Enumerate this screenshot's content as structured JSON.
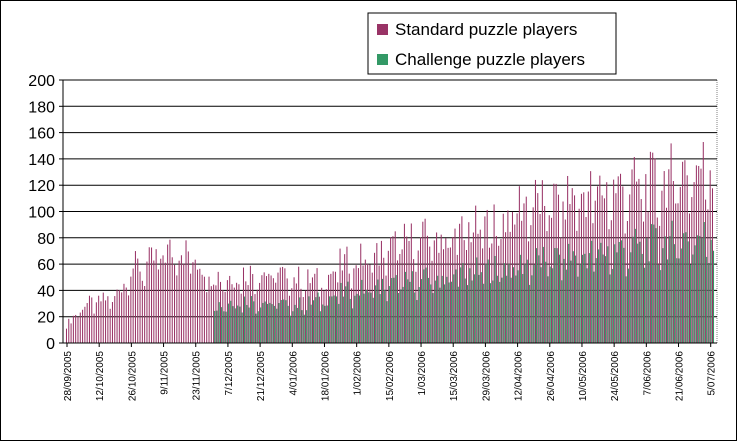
{
  "chart_data": {
    "type": "bar",
    "title": "",
    "xlabel": "",
    "ylabel": "",
    "ylim": [
      0,
      200
    ],
    "yticks": [
      "0",
      "20",
      "40",
      "60",
      "80",
      "100",
      "120",
      "140",
      "160",
      "180",
      "200"
    ],
    "x_tick_labels": [
      "28/09/2005",
      "12/10/2005",
      "26/10/2005",
      "9/11/2005",
      "23/11/2005",
      "7/12/2005",
      "21/12/2005",
      "4/01/2006",
      "18/01/2006",
      "1/02/2006",
      "15/02/2006",
      "1/03/2006",
      "15/03/2006",
      "29/03/2006",
      "12/04/2006",
      "26/04/2006",
      "10/05/2006",
      "24/05/2006",
      "7/06/2006",
      "21/06/2006",
      "5/07/2006"
    ],
    "grid": "horizontal",
    "legend_position": "top-right",
    "series": [
      {
        "name": "Standard puzzle players",
        "color": "#993366",
        "weekly_values": [
          14,
          30,
          33,
          36,
          60,
          62,
          70,
          76,
          66,
          55,
          52,
          55,
          56,
          55,
          52,
          50,
          50,
          62,
          66,
          68,
          74,
          80,
          82,
          85,
          83,
          90,
          92,
          95,
          110,
          112,
          110,
          114,
          118,
          120,
          122,
          124,
          125,
          128,
          135,
          138,
          142,
          146,
          150,
          170
        ]
      },
      {
        "name": "Challenge puzzle players",
        "color": "#339966",
        "start_date": "1/12/2005",
        "weekly_values": [
          30,
          33,
          34,
          33,
          31,
          30,
          32,
          36,
          40,
          42,
          44,
          46,
          48,
          50,
          52,
          54,
          56,
          58,
          60,
          62,
          65,
          66,
          68,
          70,
          72,
          74,
          76,
          78,
          80,
          82,
          84,
          85,
          88
        ]
      }
    ]
  }
}
